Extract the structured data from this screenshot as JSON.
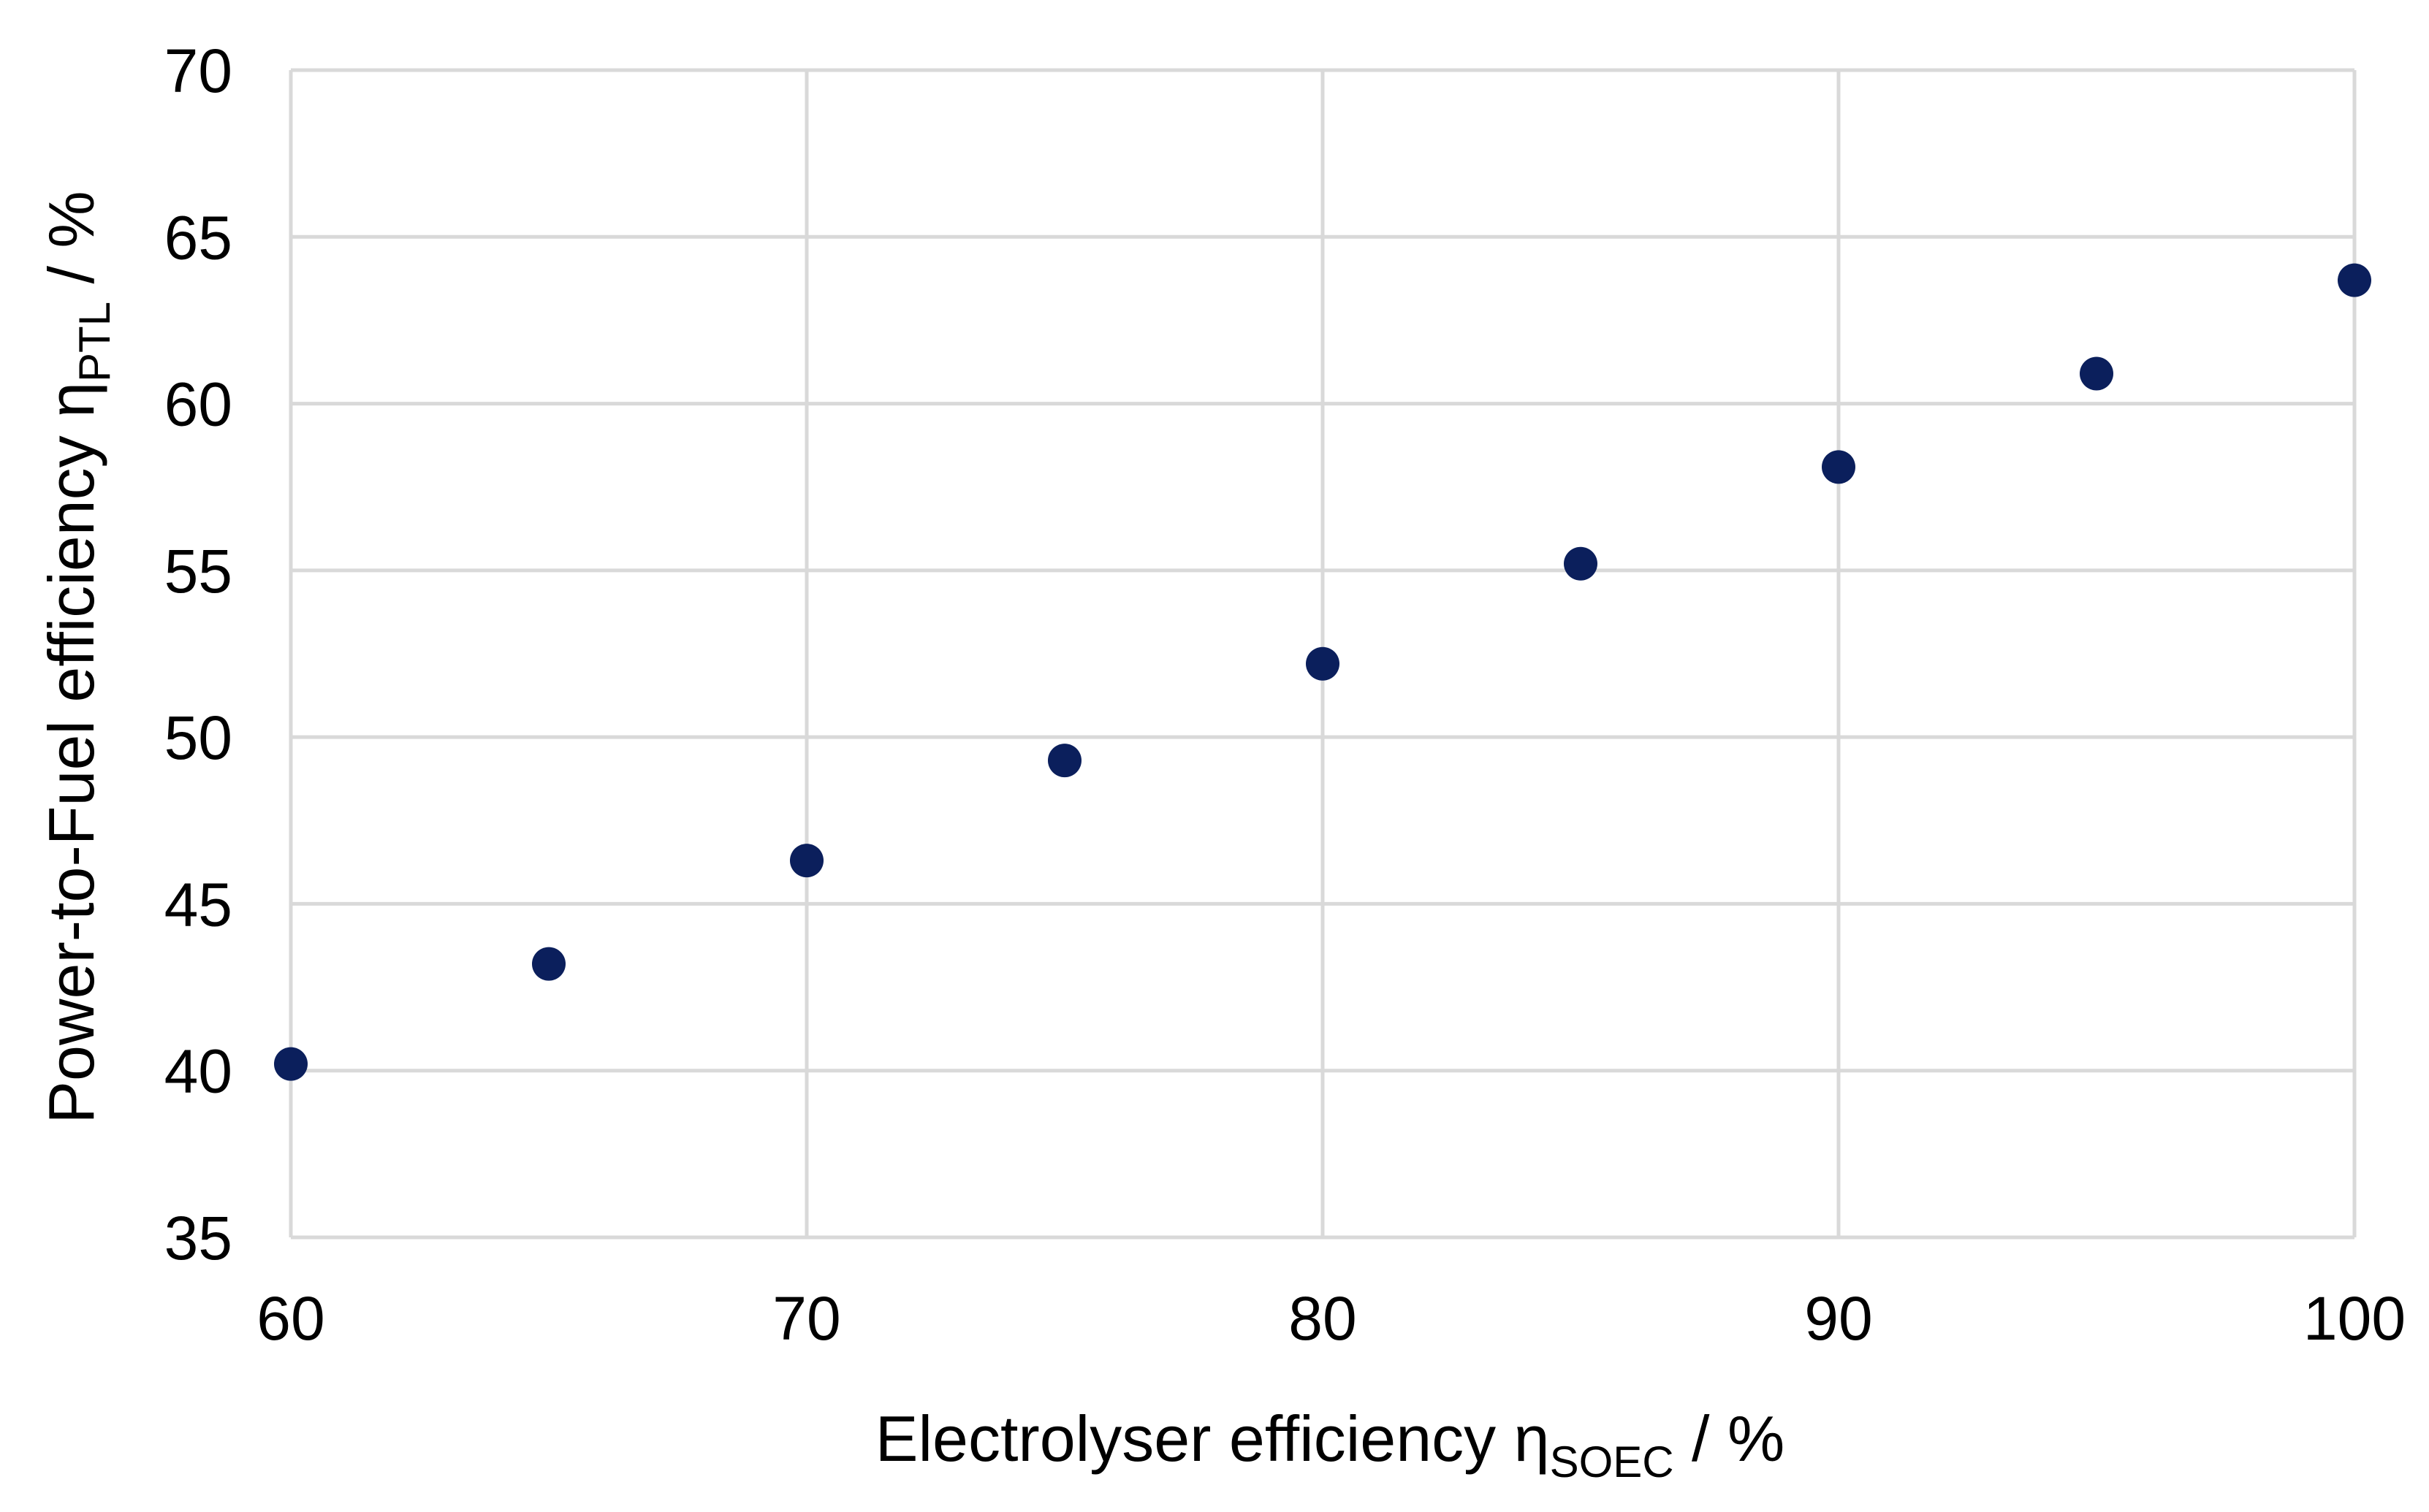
{
  "chart_data": {
    "type": "scatter",
    "title": "",
    "xlabel": {
      "main": "Electrolyser efficiency η",
      "subscript": "SOEC",
      "suffix": " / %"
    },
    "ylabel": {
      "main": "Power-to-Fuel efficiency η",
      "subscript": "PTL",
      "suffix": " / %"
    },
    "xlim": [
      60,
      100
    ],
    "ylim": [
      35,
      70
    ],
    "xticks": [
      60,
      70,
      80,
      90,
      100
    ],
    "yticks": [
      35,
      40,
      45,
      50,
      55,
      60,
      65,
      70
    ],
    "grid": true,
    "series": [
      {
        "color": "#0b1f5c",
        "x": [
          60,
          65,
          70,
          75,
          80,
          85,
          90,
          95,
          100
        ],
        "y": [
          40.2,
          43.2,
          46.3,
          49.3,
          52.2,
          55.2,
          58.1,
          60.9,
          63.7
        ]
      }
    ]
  },
  "colors": {
    "grid": "#d9d9d9",
    "background": "#ffffff",
    "text": "#000000"
  }
}
